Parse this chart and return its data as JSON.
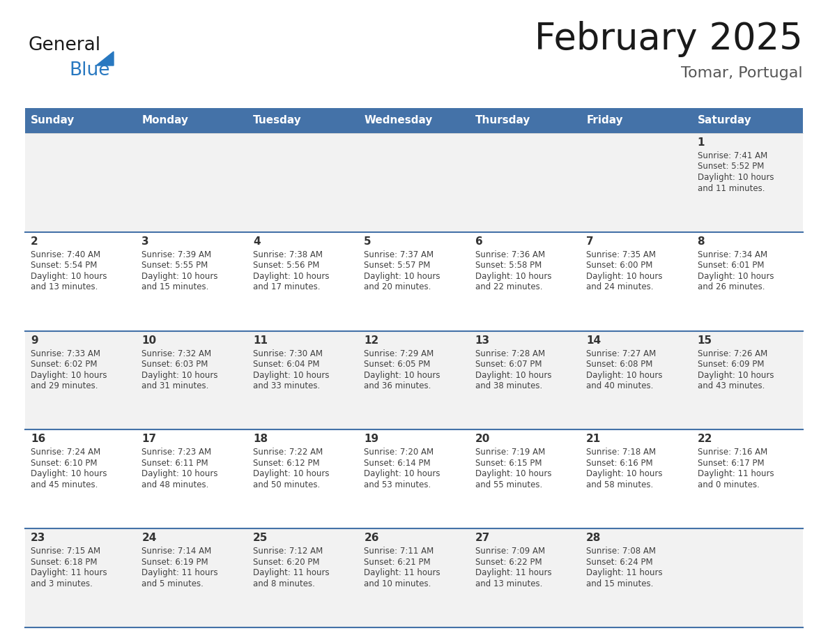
{
  "title": "February 2025",
  "subtitle": "Tomar, Portugal",
  "days_of_week": [
    "Sunday",
    "Monday",
    "Tuesday",
    "Wednesday",
    "Thursday",
    "Friday",
    "Saturday"
  ],
  "header_bg": "#4472a8",
  "header_text_color": "#ffffff",
  "cell_bg_light": "#f2f2f2",
  "cell_bg_white": "#ffffff",
  "divider_color": "#4472a8",
  "text_color": "#404040",
  "day_num_color": "#333333",
  "calendar_data": [
    [
      null,
      null,
      null,
      null,
      null,
      null,
      {
        "day": "1",
        "sunrise": "7:41 AM",
        "sunset": "5:52 PM",
        "daylight": "10 hours",
        "daylight2": "and 11 minutes."
      }
    ],
    [
      {
        "day": "2",
        "sunrise": "7:40 AM",
        "sunset": "5:54 PM",
        "daylight": "10 hours",
        "daylight2": "and 13 minutes."
      },
      {
        "day": "3",
        "sunrise": "7:39 AM",
        "sunset": "5:55 PM",
        "daylight": "10 hours",
        "daylight2": "and 15 minutes."
      },
      {
        "day": "4",
        "sunrise": "7:38 AM",
        "sunset": "5:56 PM",
        "daylight": "10 hours",
        "daylight2": "and 17 minutes."
      },
      {
        "day": "5",
        "sunrise": "7:37 AM",
        "sunset": "5:57 PM",
        "daylight": "10 hours",
        "daylight2": "and 20 minutes."
      },
      {
        "day": "6",
        "sunrise": "7:36 AM",
        "sunset": "5:58 PM",
        "daylight": "10 hours",
        "daylight2": "and 22 minutes."
      },
      {
        "day": "7",
        "sunrise": "7:35 AM",
        "sunset": "6:00 PM",
        "daylight": "10 hours",
        "daylight2": "and 24 minutes."
      },
      {
        "day": "8",
        "sunrise": "7:34 AM",
        "sunset": "6:01 PM",
        "daylight": "10 hours",
        "daylight2": "and 26 minutes."
      }
    ],
    [
      {
        "day": "9",
        "sunrise": "7:33 AM",
        "sunset": "6:02 PM",
        "daylight": "10 hours",
        "daylight2": "and 29 minutes."
      },
      {
        "day": "10",
        "sunrise": "7:32 AM",
        "sunset": "6:03 PM",
        "daylight": "10 hours",
        "daylight2": "and 31 minutes."
      },
      {
        "day": "11",
        "sunrise": "7:30 AM",
        "sunset": "6:04 PM",
        "daylight": "10 hours",
        "daylight2": "and 33 minutes."
      },
      {
        "day": "12",
        "sunrise": "7:29 AM",
        "sunset": "6:05 PM",
        "daylight": "10 hours",
        "daylight2": "and 36 minutes."
      },
      {
        "day": "13",
        "sunrise": "7:28 AM",
        "sunset": "6:07 PM",
        "daylight": "10 hours",
        "daylight2": "and 38 minutes."
      },
      {
        "day": "14",
        "sunrise": "7:27 AM",
        "sunset": "6:08 PM",
        "daylight": "10 hours",
        "daylight2": "and 40 minutes."
      },
      {
        "day": "15",
        "sunrise": "7:26 AM",
        "sunset": "6:09 PM",
        "daylight": "10 hours",
        "daylight2": "and 43 minutes."
      }
    ],
    [
      {
        "day": "16",
        "sunrise": "7:24 AM",
        "sunset": "6:10 PM",
        "daylight": "10 hours",
        "daylight2": "and 45 minutes."
      },
      {
        "day": "17",
        "sunrise": "7:23 AM",
        "sunset": "6:11 PM",
        "daylight": "10 hours",
        "daylight2": "and 48 minutes."
      },
      {
        "day": "18",
        "sunrise": "7:22 AM",
        "sunset": "6:12 PM",
        "daylight": "10 hours",
        "daylight2": "and 50 minutes."
      },
      {
        "day": "19",
        "sunrise": "7:20 AM",
        "sunset": "6:14 PM",
        "daylight": "10 hours",
        "daylight2": "and 53 minutes."
      },
      {
        "day": "20",
        "sunrise": "7:19 AM",
        "sunset": "6:15 PM",
        "daylight": "10 hours",
        "daylight2": "and 55 minutes."
      },
      {
        "day": "21",
        "sunrise": "7:18 AM",
        "sunset": "6:16 PM",
        "daylight": "10 hours",
        "daylight2": "and 58 minutes."
      },
      {
        "day": "22",
        "sunrise": "7:16 AM",
        "sunset": "6:17 PM",
        "daylight": "11 hours",
        "daylight2": "and 0 minutes."
      }
    ],
    [
      {
        "day": "23",
        "sunrise": "7:15 AM",
        "sunset": "6:18 PM",
        "daylight": "11 hours",
        "daylight2": "and 3 minutes."
      },
      {
        "day": "24",
        "sunrise": "7:14 AM",
        "sunset": "6:19 PM",
        "daylight": "11 hours",
        "daylight2": "and 5 minutes."
      },
      {
        "day": "25",
        "sunrise": "7:12 AM",
        "sunset": "6:20 PM",
        "daylight": "11 hours",
        "daylight2": "and 8 minutes."
      },
      {
        "day": "26",
        "sunrise": "7:11 AM",
        "sunset": "6:21 PM",
        "daylight": "11 hours",
        "daylight2": "and 10 minutes."
      },
      {
        "day": "27",
        "sunrise": "7:09 AM",
        "sunset": "6:22 PM",
        "daylight": "11 hours",
        "daylight2": "and 13 minutes."
      },
      {
        "day": "28",
        "sunrise": "7:08 AM",
        "sunset": "6:24 PM",
        "daylight": "11 hours",
        "daylight2": "and 15 minutes."
      },
      null
    ]
  ],
  "n_weeks": 5,
  "fig_width": 11.88,
  "fig_height": 9.18,
  "dpi": 100
}
